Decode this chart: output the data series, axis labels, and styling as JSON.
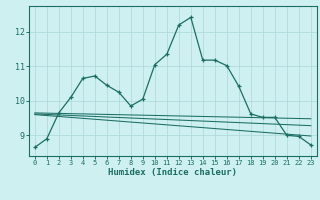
{
  "xlabel": "Humidex (Indice chaleur)",
  "xlim": [
    -0.5,
    23.5
  ],
  "ylim": [
    8.4,
    12.75
  ],
  "yticks": [
    9,
    10,
    11,
    12
  ],
  "xticks": [
    0,
    1,
    2,
    3,
    4,
    5,
    6,
    7,
    8,
    9,
    10,
    11,
    12,
    13,
    14,
    15,
    16,
    17,
    18,
    19,
    20,
    21,
    22,
    23
  ],
  "background_color": "#cff0f0",
  "grid_color": "#aad8d8",
  "line_color": "#1a6e64",
  "main_x": [
    0,
    1,
    2,
    3,
    4,
    5,
    6,
    7,
    8,
    9,
    10,
    11,
    12,
    13,
    14,
    15,
    16,
    17,
    18,
    19,
    20,
    21,
    22,
    23
  ],
  "main_y": [
    8.65,
    8.9,
    9.65,
    10.1,
    10.65,
    10.72,
    10.45,
    10.25,
    9.85,
    10.05,
    11.05,
    11.35,
    12.2,
    12.42,
    11.18,
    11.18,
    11.02,
    10.42,
    9.62,
    9.52,
    9.52,
    9.0,
    8.97,
    8.72
  ],
  "trend1_x": [
    0,
    23
  ],
  "trend1_y": [
    9.65,
    9.48
  ],
  "trend2_x": [
    0,
    23
  ],
  "trend2_y": [
    9.62,
    9.28
  ],
  "trend3_x": [
    0,
    23
  ],
  "trend3_y": [
    9.6,
    8.98
  ]
}
